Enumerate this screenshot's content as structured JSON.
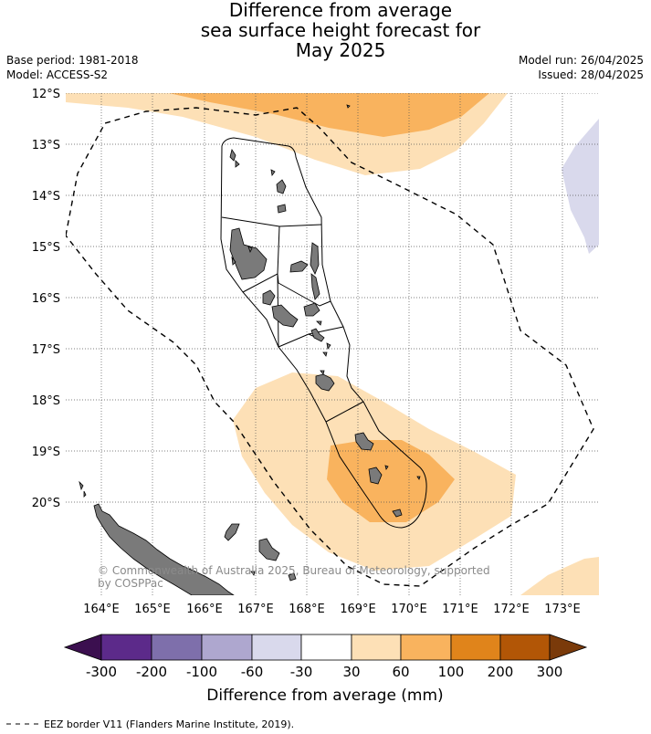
{
  "title": {
    "line1": "Difference from average",
    "line2": "sea surface height forecast for",
    "line3": "May 2025"
  },
  "meta": {
    "base_period": "Base period: 1981-2018",
    "model": "Model: ACCESS-S2",
    "model_run": "Model run: 26/04/2025",
    "issued": "Issued: 28/04/2025"
  },
  "axes": {
    "lat_labels": [
      "12°S",
      "13°S",
      "14°S",
      "15°S",
      "16°S",
      "17°S",
      "18°S",
      "19°S",
      "20°S"
    ],
    "lon_labels": [
      "164°E",
      "165°E",
      "166°E",
      "167°E",
      "168°E",
      "169°E",
      "170°E",
      "171°E",
      "172°E",
      "173°E"
    ]
  },
  "copyright": {
    "line1": "© Commonwealth of Australia 2025, Bureau of Meteorology, supported",
    "line2": "by COSPPac"
  },
  "colorbar": {
    "ticks": [
      "-300",
      "-200",
      "-100",
      "-60",
      "-30",
      "30",
      "60",
      "100",
      "200",
      "300"
    ],
    "title": "Difference from average (mm)",
    "colors": [
      "#3b0f4f",
      "#5c2a8a",
      "#7e6fab",
      "#aea7cf",
      "#d9d9ec",
      "#ffffff",
      "#fde0b6",
      "#f9b35e",
      "#e0841b",
      "#b25606",
      "#7a3a0a"
    ]
  },
  "legend": {
    "eez_label": "EEZ border V11 (Flanders Marine Institute, 2019)."
  }
}
